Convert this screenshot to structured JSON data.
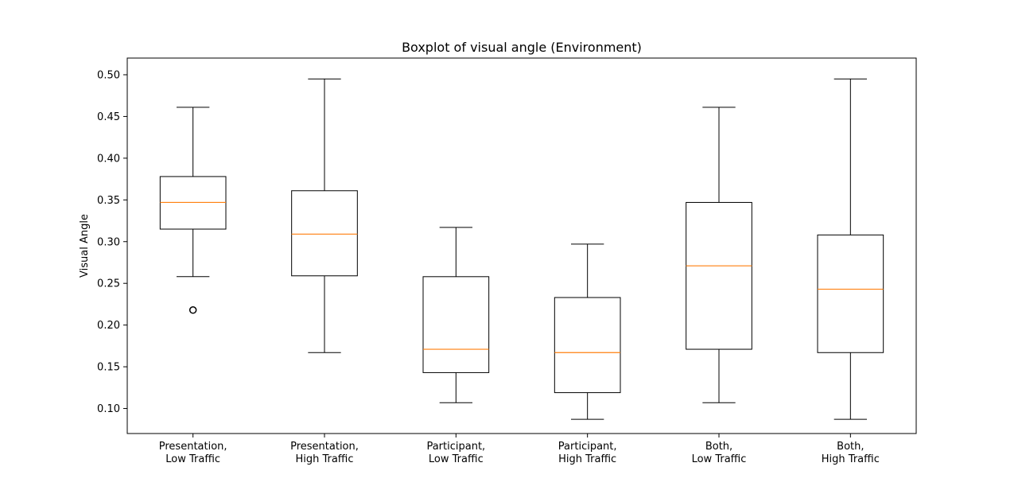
{
  "chart_data": {
    "type": "boxplot",
    "title": "Boxplot of visual angle (Environment)",
    "xlabel": "",
    "ylabel": "Visual Angle",
    "ylim": [
      0.07,
      0.52
    ],
    "yticks": [
      "0.10",
      "0.15",
      "0.20",
      "0.25",
      "0.30",
      "0.35",
      "0.40",
      "0.45",
      "0.50"
    ],
    "grid": false,
    "categories": [
      [
        "Presentation,",
        "Low Traffic"
      ],
      [
        "Presentation,",
        "High Traffic"
      ],
      [
        "Participant,",
        "Low Traffic"
      ],
      [
        "Participant,",
        "High Traffic"
      ],
      [
        "Both,",
        "Low Traffic"
      ],
      [
        "Both,",
        "High Traffic"
      ]
    ],
    "boxes": [
      {
        "whisker_low": 0.258,
        "q1": 0.315,
        "median": 0.347,
        "q3": 0.378,
        "whisker_high": 0.461,
        "outliers": [
          0.218
        ]
      },
      {
        "whisker_low": 0.167,
        "q1": 0.259,
        "median": 0.309,
        "q3": 0.361,
        "whisker_high": 0.495,
        "outliers": []
      },
      {
        "whisker_low": 0.107,
        "q1": 0.143,
        "median": 0.171,
        "q3": 0.258,
        "whisker_high": 0.317,
        "outliers": []
      },
      {
        "whisker_low": 0.087,
        "q1": 0.119,
        "median": 0.167,
        "q3": 0.233,
        "whisker_high": 0.297,
        "outliers": []
      },
      {
        "whisker_low": 0.107,
        "q1": 0.171,
        "median": 0.271,
        "q3": 0.347,
        "whisker_high": 0.461,
        "outliers": []
      },
      {
        "whisker_low": 0.087,
        "q1": 0.167,
        "median": 0.243,
        "q3": 0.308,
        "whisker_high": 0.495,
        "outliers": []
      }
    ],
    "colors": {
      "box": "#000000",
      "median": "#ff7f0e",
      "outlier_edge": "#000000"
    }
  }
}
